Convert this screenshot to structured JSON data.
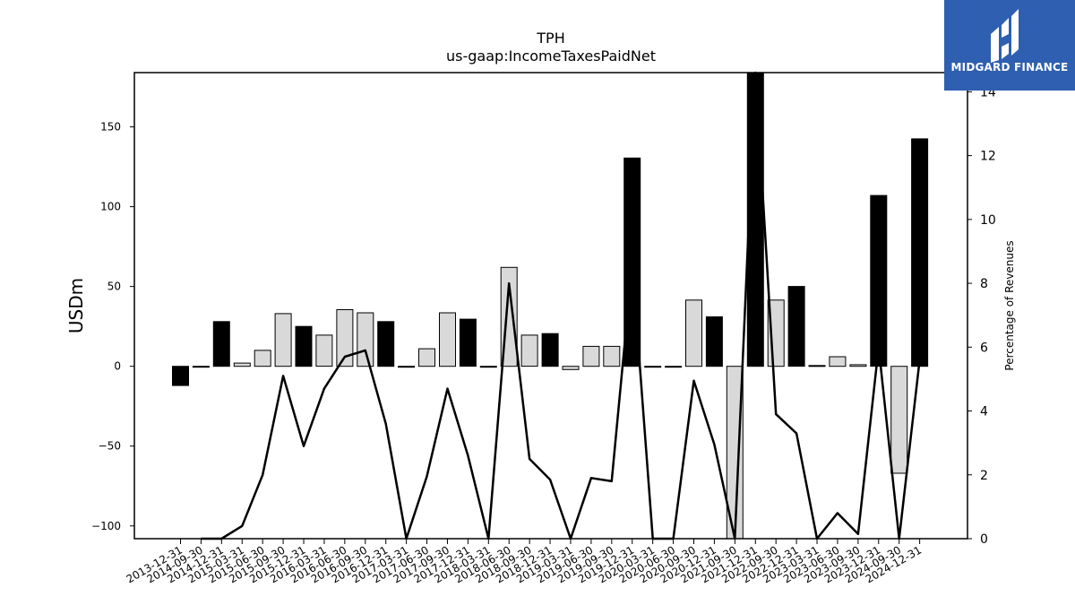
{
  "logo": {
    "text": "MIDGARD FINANCE",
    "background": "#2f5fb0"
  },
  "chart_data": {
    "type": "bar",
    "title": "TPH",
    "subtitle": "us-gaap:IncomeTaxesPaidNet",
    "ylabel": "USDm",
    "ylabel_right": "Percentage of Revenues",
    "ylim": [
      -108,
      184
    ],
    "ylim_right": [
      0,
      14.6
    ],
    "yticks": [
      -100,
      -50,
      0,
      50,
      100,
      150
    ],
    "yticks_right": [
      0,
      2,
      4,
      6,
      8,
      10,
      12,
      14
    ],
    "categories": [
      "2013-12-31",
      "2014-09-30",
      "2014-12-31",
      "2015-03-31",
      "2015-06-30",
      "2015-09-30",
      "2015-12-31",
      "2016-03-31",
      "2016-06-30",
      "2016-09-30",
      "2016-12-31",
      "2017-03-31",
      "2017-06-30",
      "2017-09-30",
      "2017-12-31",
      "2018-03-31",
      "2018-06-30",
      "2018-09-30",
      "2018-12-31",
      "2019-03-31",
      "2019-06-30",
      "2019-09-30",
      "2019-12-31",
      "2020-03-31",
      "2020-06-30",
      "2020-09-30",
      "2020-12-31",
      "2021-09-30",
      "2021-12-31",
      "2022-09-30",
      "2022-12-31",
      "2023-03-31",
      "2023-06-30",
      "2023-09-30",
      "2023-12-31",
      "2024-09-30",
      "2024-12-31"
    ],
    "series": [
      {
        "values": [
          -12,
          0,
          28,
          2,
          10,
          33,
          25,
          19.5,
          35.5,
          33.5,
          28,
          0,
          11,
          33.5,
          29.5,
          0,
          62,
          19.5,
          20.5,
          -2,
          12.5,
          12.5,
          130.5,
          0,
          0,
          41.5,
          31,
          -112,
          188,
          41.5,
          50,
          0.5,
          6,
          1,
          107,
          -67,
          142.5
        ],
        "colors": [
          "#000000",
          "#d9d9d9",
          "#000000",
          "#d9d9d9",
          "#d9d9d9",
          "#d9d9d9",
          "#000000",
          "#d9d9d9",
          "#d9d9d9",
          "#d9d9d9",
          "#000000",
          "#d9d9d9",
          "#d9d9d9",
          "#d9d9d9",
          "#000000",
          "#d9d9d9",
          "#d9d9d9",
          "#d9d9d9",
          "#000000",
          "#d9d9d9",
          "#d9d9d9",
          "#d9d9d9",
          "#000000",
          "#d9d9d9",
          "#d9d9d9",
          "#d9d9d9",
          "#000000",
          "#d9d9d9",
          "#000000",
          "#d9d9d9",
          "#000000",
          "#000000",
          "#d9d9d9",
          "#d9d9d9",
          "#000000",
          "#d9d9d9",
          "#000000"
        ]
      },
      {
        "type": "line",
        "axis": "right",
        "values": [
          null,
          0,
          0,
          0.4,
          2.0,
          5.1,
          2.9,
          4.7,
          5.7,
          5.9,
          3.6,
          0,
          1.95,
          4.7,
          2.6,
          0,
          8.0,
          2.5,
          1.85,
          -0.3,
          1.9,
          1.8,
          8.6,
          0,
          0,
          4.95,
          2.95,
          -1,
          16.5,
          3.9,
          3.3,
          0,
          0.8,
          0.15,
          6.0,
          -1,
          5.6
        ],
        "color": "#000000"
      }
    ],
    "grid": false,
    "legend": "none"
  }
}
